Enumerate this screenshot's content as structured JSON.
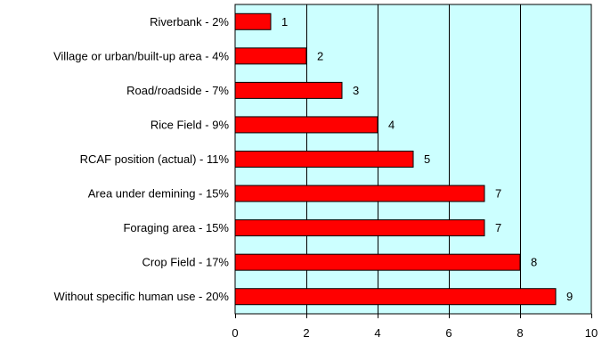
{
  "chart_data": {
    "type": "bar",
    "orientation": "horizontal",
    "title": "",
    "xlabel": "",
    "ylabel": "",
    "categories": [
      "Riverbank - 2%",
      "Village or urban/built-up area - 4%",
      "Road/roadside - 7%",
      "Rice Field - 9%",
      "RCAF position (actual) - 11%",
      "Area under demining - 15%",
      "Foraging area - 15%",
      "Crop Field - 17%",
      "Without specific human use - 20%"
    ],
    "values": [
      1,
      2,
      3,
      4,
      5,
      7,
      7,
      8,
      9
    ],
    "xlim": [
      0,
      10
    ],
    "xticks": [
      0,
      2,
      4,
      6,
      8,
      10
    ],
    "grid": "vertical",
    "data_labels": true,
    "colors": {
      "bar": "#ff0000",
      "plot_background": "#ccffff",
      "grid": "#000000"
    }
  }
}
